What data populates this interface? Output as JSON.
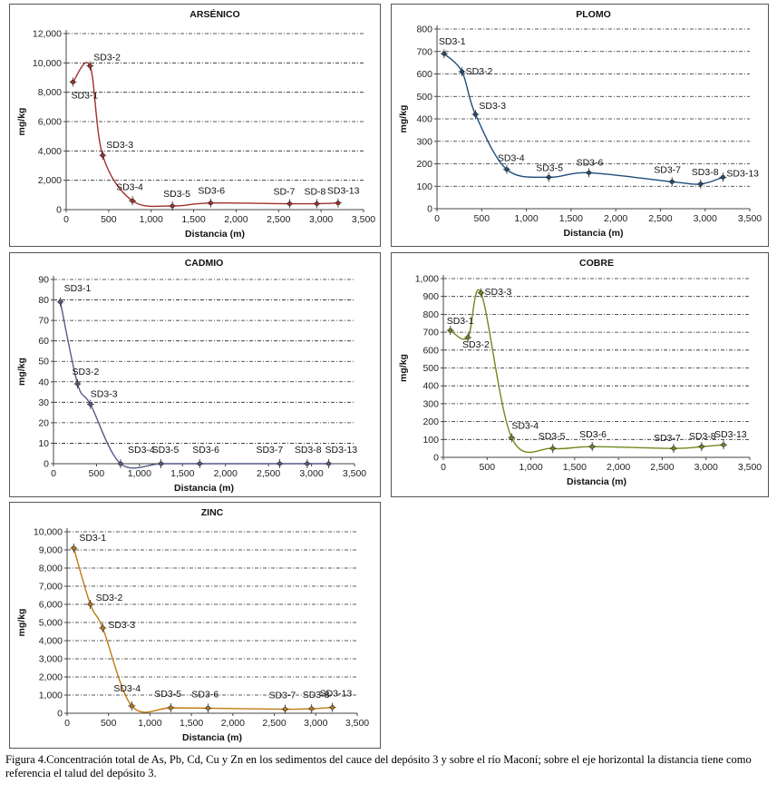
{
  "caption": "Figura 4.Concentración total de As, Pb, Cd, Cu y Zn en los sedimentos del cauce del depósito 3 y sobre el río Maconí; sobre el eje horizontal la distancia tiene como referencia el talud del depósito 3.",
  "chart_data": [
    {
      "type": "line",
      "title": "ARSÉNICO",
      "xlabel": "Distancia (m)",
      "ylabel": "mg/kg",
      "xlim": [
        0,
        3500
      ],
      "ylim": [
        0,
        12000
      ],
      "xticks": [
        0,
        500,
        1000,
        1500,
        2000,
        2500,
        3000,
        3500
      ],
      "xticklabels": [
        "0",
        "500",
        "1,000",
        "1,500",
        "2,000",
        "2,500",
        "3,000",
        "3,500"
      ],
      "yticks": [
        0,
        2000,
        4000,
        6000,
        8000,
        10000,
        12000
      ],
      "yticklabels": [
        "0",
        "2,000",
        "4,000",
        "6,000",
        "8,000",
        "10,000",
        "12,000"
      ],
      "color": "#a0302b",
      "x": [
        80,
        280,
        430,
        780,
        1250,
        1700,
        2630,
        2950,
        3200
      ],
      "values": [
        8700,
        9800,
        3700,
        600,
        250,
        450,
        400,
        400,
        450
      ],
      "point_labels": [
        "SD3-1",
        "SD3-2",
        "SD3-3",
        "SD3-4",
        "SD3-5",
        "SD3-6",
        "SD-7",
        "SD-8",
        "SD3-13"
      ]
    },
    {
      "type": "line",
      "title": "PLOMO",
      "xlabel": "Distancia (m)",
      "ylabel": "mg/kg",
      "xlim": [
        0,
        3500
      ],
      "ylim": [
        0,
        800
      ],
      "xticks": [
        0,
        500,
        1000,
        1500,
        2000,
        2500,
        3000,
        3500
      ],
      "xticklabels": [
        "0",
        "500",
        "1,000",
        "1,500",
        "2,000",
        "2,500",
        "3,000",
        "3,500"
      ],
      "yticks": [
        0,
        100,
        200,
        300,
        400,
        500,
        600,
        700,
        800
      ],
      "yticklabels": [
        "0",
        "100",
        "200",
        "300",
        "400",
        "500",
        "600",
        "700",
        "800"
      ],
      "color": "#1f4e79",
      "x": [
        80,
        280,
        430,
        780,
        1250,
        1700,
        2630,
        2950,
        3200
      ],
      "values": [
        690,
        610,
        420,
        175,
        140,
        160,
        120,
        110,
        140
      ],
      "point_labels": [
        "SD3-1",
        "SD3-2",
        "SD3-3",
        "SD3-4",
        "SD3-5",
        "SD3-6",
        "SD3-7",
        "SD3-8",
        "SD3-13"
      ]
    },
    {
      "type": "line",
      "title": "CADMIO",
      "xlabel": "Distancia (m)",
      "ylabel": "mg/kg",
      "xlim": [
        0,
        3500
      ],
      "ylim": [
        0,
        90
      ],
      "xticks": [
        0,
        500,
        1000,
        1500,
        2000,
        2500,
        3000,
        3500
      ],
      "xticklabels": [
        "0",
        "500",
        "1,000",
        "1,500",
        "2,000",
        "2,500",
        "3,000",
        "3,500"
      ],
      "yticks": [
        0,
        10,
        20,
        30,
        40,
        50,
        60,
        70,
        80,
        90
      ],
      "yticklabels": [
        "0",
        "10",
        "20",
        "30",
        "40",
        "50",
        "60",
        "70",
        "80",
        "90"
      ],
      "color": "#555a8a",
      "x": [
        80,
        280,
        430,
        780,
        1250,
        1700,
        2630,
        2950,
        3200
      ],
      "values": [
        79,
        39,
        29,
        0,
        0,
        0,
        0,
        0,
        0
      ],
      "point_labels": [
        "SD3-1",
        "SD3-2",
        "SD3-3",
        "SD3-4",
        "SD3-5",
        "SD3-6",
        "SD3-7",
        "SD3-8",
        "SD3-13"
      ]
    },
    {
      "type": "line",
      "title": "COBRE",
      "xlabel": "Distancia (m)",
      "ylabel": "mg/kg",
      "xlim": [
        0,
        3500
      ],
      "ylim": [
        0,
        1000
      ],
      "xticks": [
        0,
        500,
        1000,
        1500,
        2000,
        2500,
        3000,
        3500
      ],
      "xticklabels": [
        "0",
        "500",
        "1,000",
        "1,500",
        "2,000",
        "2,500",
        "3,000",
        "3,500"
      ],
      "yticks": [
        0,
        100,
        200,
        300,
        400,
        500,
        600,
        700,
        800,
        900,
        1000
      ],
      "yticklabels": [
        "0",
        "100",
        "200",
        "300",
        "400",
        "500",
        "600",
        "700",
        "800",
        "900",
        "1,000"
      ],
      "color": "#6f8a1e",
      "x": [
        80,
        280,
        430,
        780,
        1250,
        1700,
        2630,
        2950,
        3200
      ],
      "values": [
        710,
        670,
        920,
        110,
        50,
        60,
        50,
        60,
        70
      ],
      "point_labels": [
        "SD3-1",
        "SD3-2",
        "SD3-3",
        "SD3-4",
        "SD3-5",
        "SD3-6",
        "SD3-7",
        "SD3-8",
        "SD3-13"
      ]
    },
    {
      "type": "line",
      "title": "ZINC",
      "xlabel": "Distancia (m)",
      "ylabel": "mg/kg",
      "xlim": [
        0,
        3500
      ],
      "ylim": [
        0,
        10000
      ],
      "xticks": [
        0,
        500,
        1000,
        1500,
        2000,
        2500,
        3000,
        3500
      ],
      "xticklabels": [
        "0",
        "500",
        "1,000",
        "1,500",
        "2,000",
        "2,500",
        "3,000",
        "3,500"
      ],
      "yticks": [
        0,
        1000,
        2000,
        3000,
        4000,
        5000,
        6000,
        7000,
        8000,
        9000,
        10000
      ],
      "yticklabels": [
        "0",
        "1,000",
        "2,000",
        "3,000",
        "4,000",
        "5,000",
        "6,000",
        "7,000",
        "8,000",
        "9,000",
        "10,000"
      ],
      "color": "#c07a12",
      "x": [
        80,
        280,
        430,
        780,
        1250,
        1700,
        2630,
        2950,
        3200
      ],
      "values": [
        9100,
        6000,
        4700,
        400,
        300,
        280,
        220,
        250,
        320
      ],
      "point_labels": [
        "SD3-1",
        "SD3-2",
        "SD3-3",
        "SD3-4",
        "SD3-5",
        "SD3-6",
        "SD3-7",
        "SD3-8",
        "SD3-13"
      ]
    }
  ]
}
